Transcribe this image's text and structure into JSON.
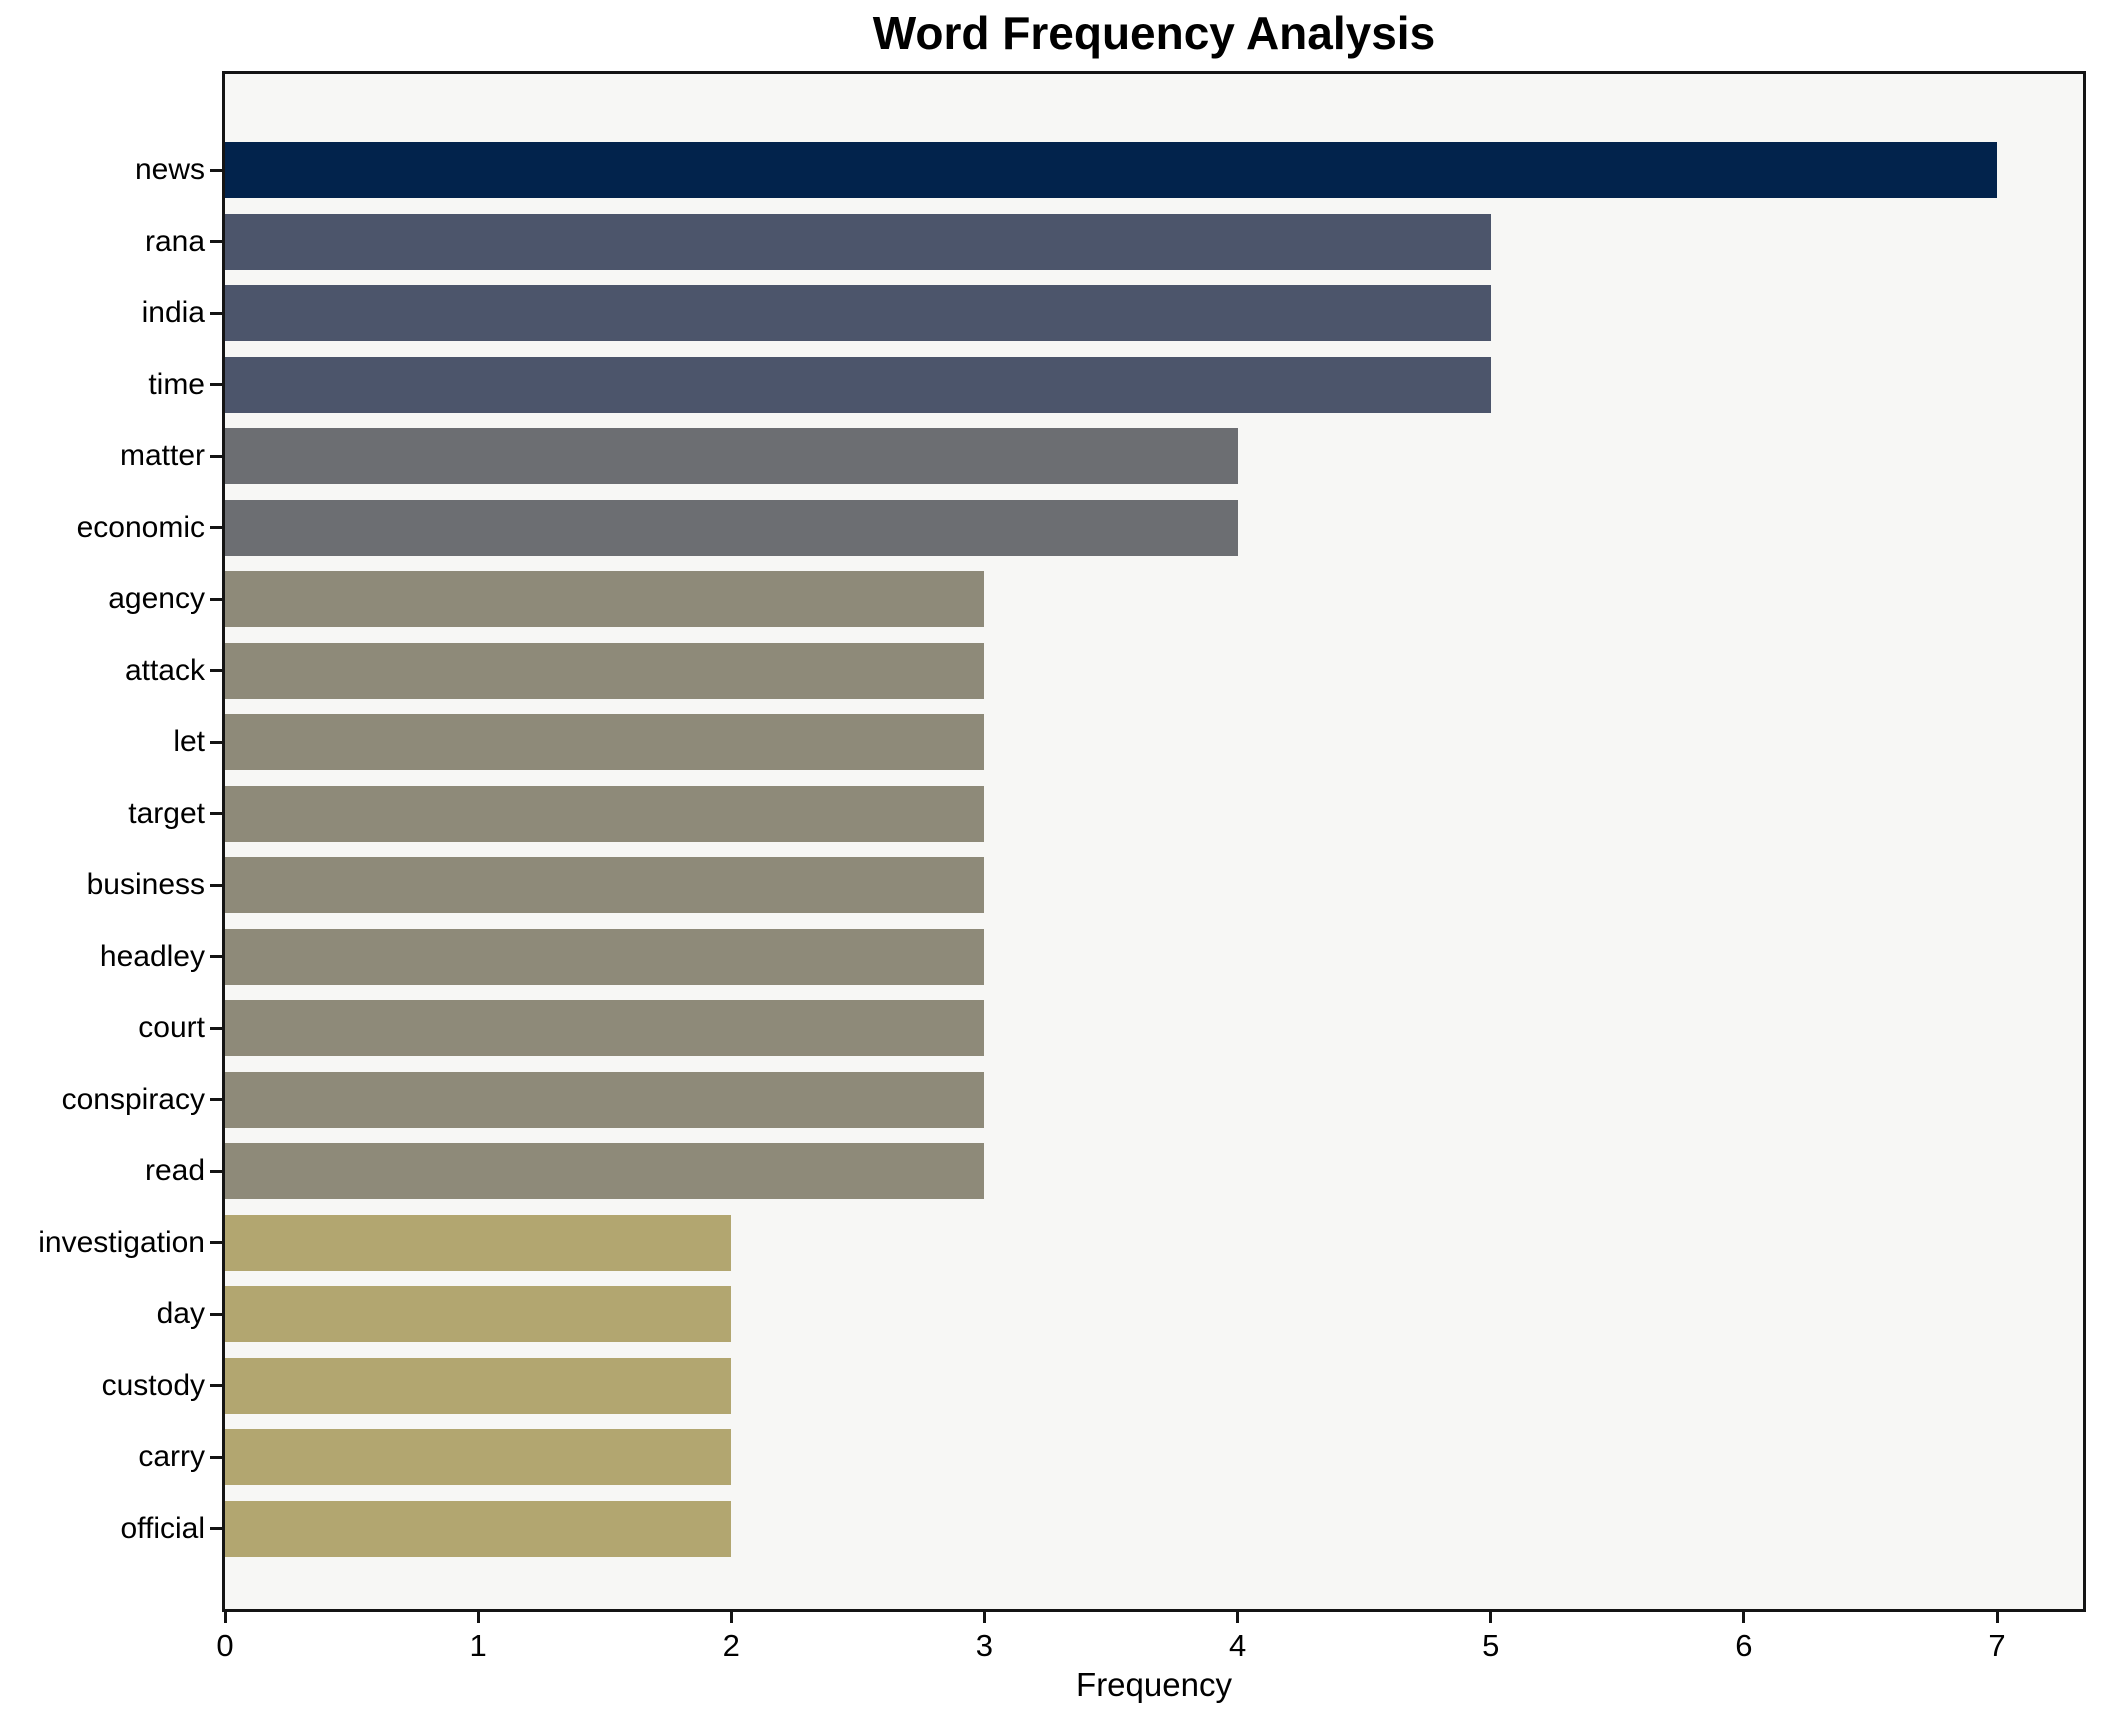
{
  "title": "Word Frequency Analysis",
  "chart_data": {
    "type": "bar",
    "orientation": "horizontal",
    "title": "Word Frequency Analysis",
    "xlabel": "Frequency",
    "ylabel": "",
    "categories": [
      "news",
      "rana",
      "india",
      "time",
      "matter",
      "economic",
      "agency",
      "attack",
      "let",
      "target",
      "business",
      "headley",
      "court",
      "conspiracy",
      "read",
      "investigation",
      "day",
      "custody",
      "carry",
      "official"
    ],
    "values": [
      7,
      5,
      5,
      5,
      4,
      4,
      3,
      3,
      3,
      3,
      3,
      3,
      3,
      3,
      3,
      2,
      2,
      2,
      2,
      2
    ],
    "bar_colors": [
      "#02234c",
      "#4c556b",
      "#4c556b",
      "#4c556b",
      "#6c6e72",
      "#6c6e72",
      "#8e8a79",
      "#8e8a79",
      "#8e8a79",
      "#8e8a79",
      "#8e8a79",
      "#8e8a79",
      "#8e8a79",
      "#8e8a79",
      "#8e8a79",
      "#b2a670",
      "#b2a670",
      "#b2a670",
      "#b2a670",
      "#b2a670"
    ],
    "xticks": [
      0,
      1,
      2,
      3,
      4,
      5,
      6,
      7
    ],
    "xlim": [
      0,
      7.35
    ],
    "grid": false,
    "legend": null,
    "plot_bg": "#f7f7f5",
    "figure_bg": "#ffffff",
    "spine_color": "#141414",
    "text_color": "#000000"
  }
}
